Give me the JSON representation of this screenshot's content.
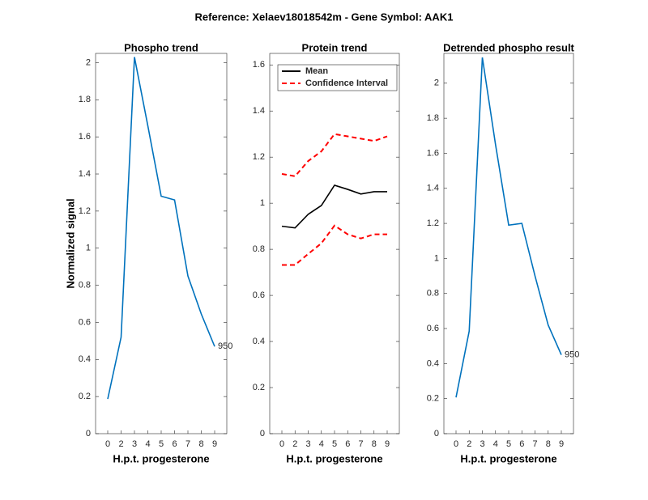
{
  "title": "Reference:  Xelaev18018542m - Gene Symbol:  AAK1",
  "chart_data": [
    {
      "type": "line",
      "title": "Phospho trend",
      "xlabel": "H.p.t. progesterone",
      "ylabel": "Normalized signal",
      "categories": [
        "0",
        "2",
        "3",
        "4",
        "5",
        "6",
        "7",
        "8",
        "9"
      ],
      "series": [
        {
          "name": "Phospho",
          "color": "#0072bd",
          "values": [
            0.187,
            0.52,
            2.03,
            1.66,
            1.28,
            1.26,
            0.85,
            0.645,
            0.47
          ]
        }
      ],
      "annotation": "950",
      "ylim": [
        0,
        2.05
      ],
      "yticks": [
        0,
        0.2,
        0.4,
        0.6,
        0.8,
        1,
        1.2,
        1.4,
        1.6,
        1.8,
        2
      ]
    },
    {
      "type": "line",
      "title": "Protein trend",
      "xlabel": "H.p.t. progesterone",
      "categories": [
        "0",
        "2",
        "3",
        "4",
        "5",
        "6",
        "7",
        "8",
        "9"
      ],
      "series": [
        {
          "name": "Mean",
          "color": "#000000",
          "dash": false,
          "values": [
            0.9,
            0.893,
            0.952,
            0.99,
            1.078,
            1.06,
            1.04,
            1.05,
            1.05
          ]
        },
        {
          "name": "Confidence Interval",
          "color": "#ff0000",
          "dash": true,
          "upper": [
            1.127,
            1.117,
            1.183,
            1.225,
            1.3,
            1.29,
            1.28,
            1.27,
            1.29
          ],
          "lower": [
            0.732,
            0.732,
            0.78,
            0.826,
            0.903,
            0.865,
            0.847,
            0.865,
            0.865
          ]
        }
      ],
      "legend": "upper left",
      "ylim": [
        0,
        1.65
      ],
      "yticks": [
        0,
        0.2,
        0.4,
        0.6,
        0.8,
        1,
        1.2,
        1.4,
        1.6
      ]
    },
    {
      "type": "line",
      "title": "Detrended phospho result",
      "xlabel": "H.p.t. progesterone",
      "categories": [
        "0",
        "2",
        "3",
        "4",
        "5",
        "6",
        "7",
        "8",
        "9"
      ],
      "series": [
        {
          "name": "Detrended",
          "color": "#0072bd",
          "values": [
            0.207,
            0.585,
            2.147,
            1.65,
            1.19,
            1.2,
            0.9,
            0.62,
            0.45
          ]
        }
      ],
      "annotation": "950",
      "ylim": [
        0,
        2.17
      ],
      "yticks": [
        0,
        0.2,
        0.4,
        0.6,
        0.8,
        1,
        1.2,
        1.4,
        1.6,
        1.8,
        2
      ]
    }
  ]
}
